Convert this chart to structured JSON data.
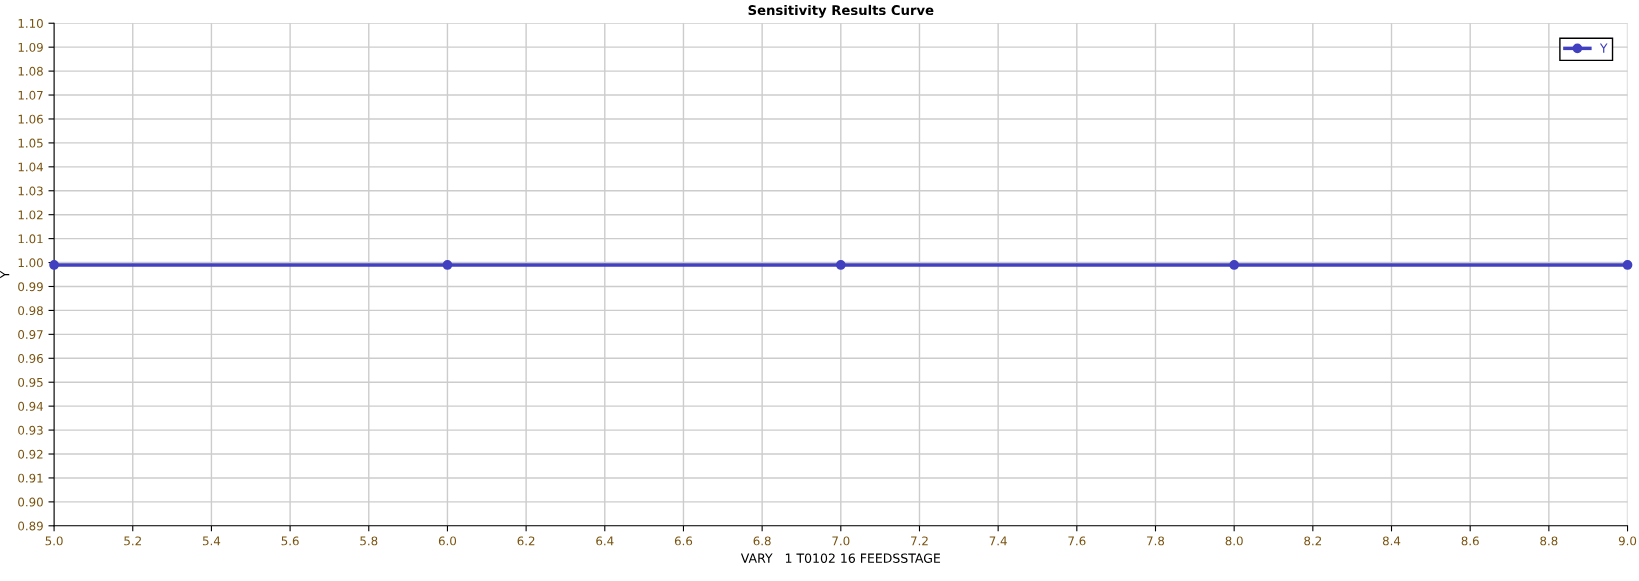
{
  "chart_data": {
    "type": "line",
    "title": "Sensitivity Results Curve",
    "xlabel": "VARY   1 T0102 16 FEEDSSTAGE",
    "ylabel": "Y",
    "x": [
      5,
      6,
      7,
      8,
      9
    ],
    "series": [
      {
        "name": "Y",
        "color": "#4040c0",
        "values": [
          0.999,
          0.999,
          0.999,
          0.999,
          0.999
        ]
      }
    ],
    "xlim": [
      5,
      9
    ],
    "xticks": [
      {
        "value": 5,
        "label": "5.0"
      },
      5.2,
      5.4,
      5.6,
      5.8,
      {
        "value": 6,
        "label": "6.0"
      },
      6.2,
      6.4,
      6.6,
      6.8,
      {
        "value": 7,
        "label": "7.0"
      },
      7.2,
      7.4,
      7.6,
      7.8,
      {
        "value": 8,
        "label": "8.0"
      },
      8.2,
      8.4,
      8.6,
      8.8,
      {
        "value": 9,
        "label": "9.0"
      }
    ],
    "ylim": [
      0.89,
      1.1
    ],
    "yticks": [
      {
        "value": 0.89,
        "label": "0.89"
      },
      {
        "value": 0.9,
        "label": "0.90"
      },
      {
        "value": 0.91,
        "label": "0.91"
      },
      {
        "value": 0.92,
        "label": "0.92"
      },
      {
        "value": 0.93,
        "label": "0.93"
      },
      {
        "value": 0.94,
        "label": "0.94"
      },
      {
        "value": 0.95,
        "label": "0.95"
      },
      {
        "value": 0.96,
        "label": "0.96"
      },
      {
        "value": 0.97,
        "label": "0.97"
      },
      {
        "value": 0.98,
        "label": "0.98"
      },
      {
        "value": 0.99,
        "label": "0.99"
      },
      {
        "value": 1.0,
        "label": "1.00"
      },
      {
        "value": 1.01,
        "label": "1.01"
      },
      {
        "value": 1.02,
        "label": "1.02"
      },
      {
        "value": 1.03,
        "label": "1.03"
      },
      {
        "value": 1.04,
        "label": "1.04"
      },
      {
        "value": 1.05,
        "label": "1.05"
      },
      {
        "value": 1.06,
        "label": "1.06"
      },
      {
        "value": 1.07,
        "label": "1.07"
      },
      {
        "value": 1.08,
        "label": "1.08"
      },
      {
        "value": 1.09,
        "label": "1.09"
      },
      {
        "value": 1.1,
        "label": "1.10"
      }
    ],
    "grid": true,
    "legend": "top right",
    "marker": "circle",
    "line_style": "solid"
  }
}
